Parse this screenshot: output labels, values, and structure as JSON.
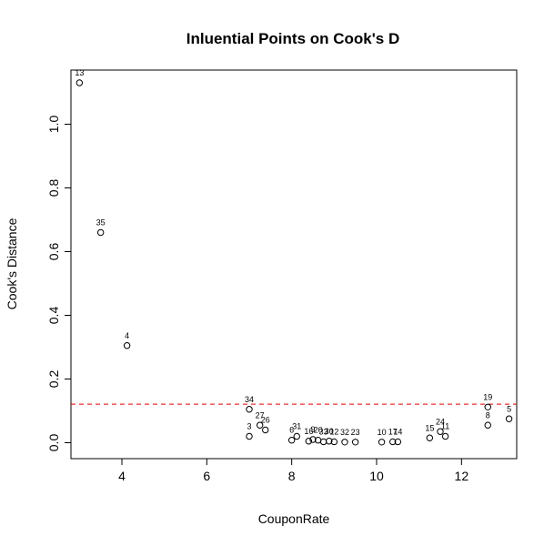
{
  "chart_data": {
    "type": "scatter",
    "title": "Inluential Points on Cook's D",
    "xlabel": "CouponRate",
    "ylabel": "Cook's Distance",
    "xlim": [
      2.8,
      13.3
    ],
    "ylim": [
      -0.05,
      1.17
    ],
    "x_ticks": [
      4,
      6,
      8,
      10,
      12
    ],
    "y_ticks": [
      0.0,
      0.2,
      0.4,
      0.6,
      0.8,
      1.0
    ],
    "x_tick_labels": [
      "4",
      "6",
      "8",
      "10",
      "12"
    ],
    "y_tick_labels": [
      "0.0",
      "0.2",
      "0.4",
      "0.6",
      "0.8",
      "1.0"
    ],
    "grid": false,
    "threshold": {
      "y": 0.121,
      "color": "#e00000",
      "style": "dashed"
    },
    "point_color": "#000000",
    "points": [
      {
        "label": "13",
        "x": 3.0,
        "y": 1.13
      },
      {
        "label": "35",
        "x": 3.5,
        "y": 0.66
      },
      {
        "label": "4",
        "x": 4.12,
        "y": 0.305
      },
      {
        "label": "34",
        "x": 7.0,
        "y": 0.105
      },
      {
        "label": "3",
        "x": 7.0,
        "y": 0.02
      },
      {
        "label": "27",
        "x": 7.25,
        "y": 0.055
      },
      {
        "label": "26",
        "x": 7.38,
        "y": 0.04
      },
      {
        "label": "6",
        "x": 8.0,
        "y": 0.008
      },
      {
        "label": "31",
        "x": 8.12,
        "y": 0.02
      },
      {
        "label": "16",
        "x": 8.4,
        "y": 0.005
      },
      {
        "label": "9",
        "x": 8.5,
        "y": 0.01
      },
      {
        "label": "20",
        "x": 8.62,
        "y": 0.008
      },
      {
        "label": "33",
        "x": 8.75,
        "y": 0.003
      },
      {
        "label": "30",
        "x": 8.88,
        "y": 0.005
      },
      {
        "label": "12",
        "x": 9.0,
        "y": 0.003
      },
      {
        "label": "32",
        "x": 9.25,
        "y": 0.002
      },
      {
        "label": "23",
        "x": 9.5,
        "y": 0.002
      },
      {
        "label": "10",
        "x": 10.12,
        "y": 0.002
      },
      {
        "label": "17",
        "x": 10.38,
        "y": 0.003
      },
      {
        "label": "14",
        "x": 10.5,
        "y": 0.003
      },
      {
        "label": "15",
        "x": 11.25,
        "y": 0.015
      },
      {
        "label": "24",
        "x": 11.5,
        "y": 0.035
      },
      {
        "label": "11",
        "x": 11.62,
        "y": 0.02
      },
      {
        "label": "19",
        "x": 12.62,
        "y": 0.112
      },
      {
        "label": "8",
        "x": 12.62,
        "y": 0.055
      },
      {
        "label": "5",
        "x": 13.12,
        "y": 0.075
      }
    ]
  }
}
